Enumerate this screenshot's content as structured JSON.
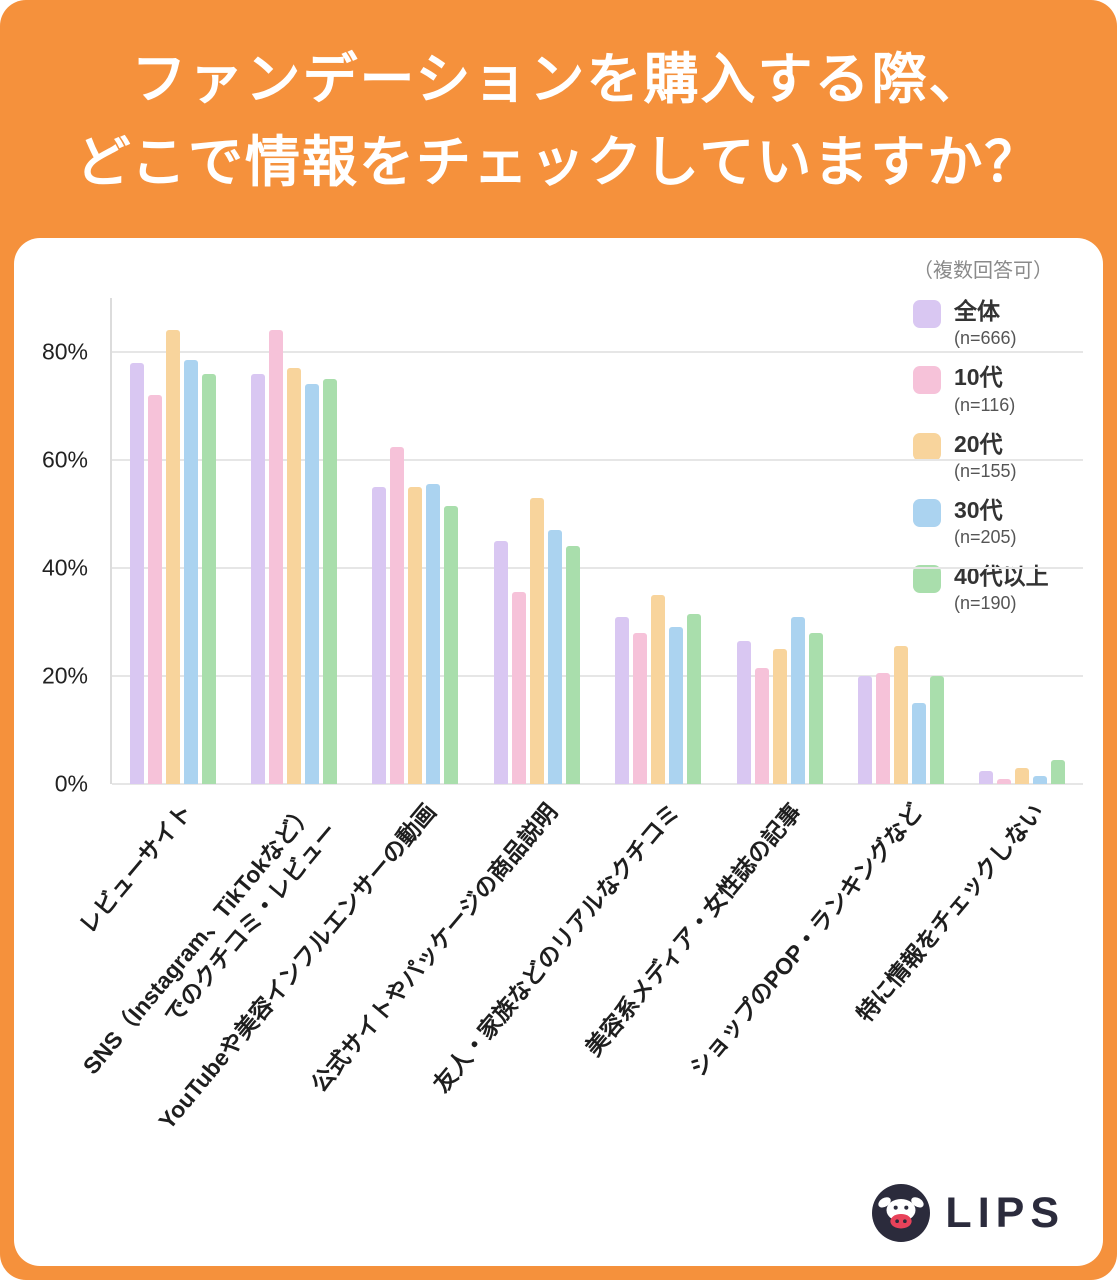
{
  "header": {
    "title_lines": [
      "ファンデーションを購入する際、",
      "どこで情報をチェックしていますか？"
    ]
  },
  "legend": {
    "note": "（複数回答可）",
    "items": [
      {
        "label": "全体",
        "n_label": "(n=666)",
        "color": "#D9C7F2"
      },
      {
        "label": "10代",
        "n_label": "(n=116)",
        "color": "#F6C2D9"
      },
      {
        "label": "20代",
        "n_label": "(n=155)",
        "color": "#F8D49C"
      },
      {
        "label": "30代",
        "n_label": "(n=205)",
        "color": "#ABD3F0"
      },
      {
        "label": "40代以上",
        "n_label": "(n=190)",
        "color": "#A9DEAC"
      }
    ]
  },
  "chart_data": {
    "type": "bar",
    "title": "ファンデーションを購入する際、どこで情報をチェックしていますか？",
    "note": "（複数回答可）",
    "categories": [
      "レビューサイト",
      "SNS（Instagram、TikTokなど）でのクチコミ・レビュー",
      "YouTubeや美容インフルエンサーの動画",
      "公式サイトやパッケージの商品説明",
      "友人・家族などのリアルなクチコミ",
      "美容系メディア・女性誌の記事",
      "ショップのPOP・ランキングなど",
      "特に情報をチェックしない"
    ],
    "category_label_lines": [
      [
        "レビューサイト"
      ],
      [
        "SNS（Instagram、TikTokなど）",
        "でのクチコミ・レビュー"
      ],
      [
        "YouTubeや美容インフルエンサーの動画"
      ],
      [
        "公式サイトやパッケージの商品説明"
      ],
      [
        "友人・家族などのリアルなクチコミ"
      ],
      [
        "美容系メディア・女性誌の記事"
      ],
      [
        "ショップのPOP・ランキングなど"
      ],
      [
        "特に情報をチェックしない"
      ]
    ],
    "series": [
      {
        "name": "全体",
        "n": 666,
        "color": "#D9C7F2",
        "values": [
          78,
          76,
          55,
          45,
          31,
          26.5,
          20,
          2.5
        ]
      },
      {
        "name": "10代",
        "n": 116,
        "color": "#F6C2D9",
        "values": [
          72,
          84,
          62.5,
          35.5,
          28,
          21.5,
          20.5,
          1
        ]
      },
      {
        "name": "20代",
        "n": 155,
        "color": "#F8D49C",
        "values": [
          84,
          77,
          55,
          53,
          35,
          25,
          25.5,
          3
        ]
      },
      {
        "name": "30代",
        "n": 205,
        "color": "#ABD3F0",
        "values": [
          78.5,
          74,
          55.5,
          47,
          29,
          31,
          15,
          1.5
        ]
      },
      {
        "name": "40代以上",
        "n": 190,
        "color": "#A9DEAC",
        "values": [
          76,
          75,
          51.5,
          44,
          31.5,
          28,
          20,
          4.5
        ]
      }
    ],
    "ylim": [
      0,
      90
    ],
    "yticks": [
      0,
      20,
      40,
      60,
      80
    ],
    "ytick_suffix": "%",
    "grid": true,
    "legend_position": "top-right"
  },
  "footer": {
    "brand": "LIPS"
  }
}
